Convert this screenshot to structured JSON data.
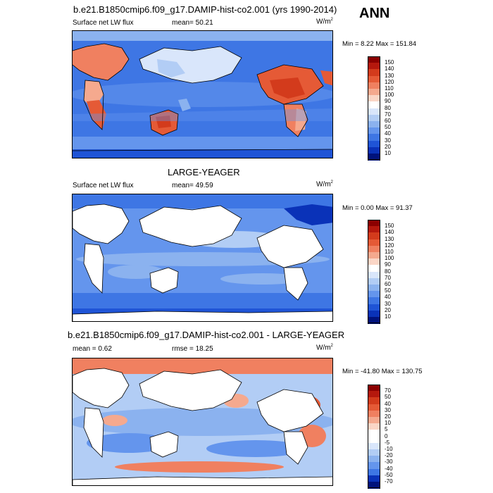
{
  "season": "ANN",
  "chart_data": [
    {
      "type": "heatmap",
      "title": "b.e21.B1850cmip6.f09_g17.DAMIP-hist-co2.001 (yrs 1990-2014)",
      "left_label": "Surface net LW flux",
      "center_label": "mean=  50.21",
      "units": "W/m",
      "units_sup": "2",
      "min_max": "Min =   8.22 Max = 151.84",
      "min": 8.22,
      "max": 151.84,
      "mean": 50.21,
      "colorbar_levels": [
        "150",
        "140",
        "130",
        "120",
        "110",
        "100",
        "90",
        "80",
        "70",
        "60",
        "50",
        "40",
        "30",
        "20",
        "10"
      ],
      "colorbar_colors": [
        "#8b0000",
        "#b5180d",
        "#d33b1c",
        "#e55a36",
        "#f08060",
        "#f5a98e",
        "#fbd6c6",
        "#ffffff",
        "#d9e6fb",
        "#b2cdf5",
        "#8bb2ef",
        "#6495ed",
        "#3e76e4",
        "#1f54d6",
        "#0a32b8",
        "#00127c"
      ]
    },
    {
      "type": "heatmap",
      "title": "LARGE-YEAGER",
      "left_label": "Surface net LW flux",
      "center_label": "mean=  49.59",
      "units": "W/m",
      "units_sup": "2",
      "min_max": "Min =   0.00 Max =  91.37",
      "min": 0.0,
      "max": 91.37,
      "mean": 49.59,
      "colorbar_levels": [
        "150",
        "140",
        "130",
        "120",
        "110",
        "100",
        "90",
        "80",
        "70",
        "60",
        "50",
        "40",
        "30",
        "20",
        "10"
      ],
      "colorbar_colors": [
        "#8b0000",
        "#b5180d",
        "#d33b1c",
        "#e55a36",
        "#f08060",
        "#f5a98e",
        "#fbd6c6",
        "#ffffff",
        "#d9e6fb",
        "#b2cdf5",
        "#8bb2ef",
        "#6495ed",
        "#3e76e4",
        "#1f54d6",
        "#0a32b8",
        "#00127c"
      ]
    },
    {
      "type": "heatmap",
      "title": "b.e21.B1850cmip6.f09_g17.DAMIP-hist-co2.001 - LARGE-YEAGER",
      "left_label": "mean =   0.62",
      "center_label": "rmse =  18.25",
      "units": "W/m",
      "units_sup": "2",
      "min_max": "Min = -41.80 Max = 130.75",
      "min": -41.8,
      "max": 130.75,
      "mean": 0.62,
      "rmse": 18.25,
      "colorbar_levels": [
        "70",
        "50",
        "40",
        "30",
        "20",
        "10",
        "5",
        "0",
        "-5",
        "-10",
        "-20",
        "-30",
        "-40",
        "-50",
        "-70"
      ],
      "colorbar_colors": [
        "#8b0000",
        "#b5180d",
        "#d33b1c",
        "#e55a36",
        "#f08060",
        "#f5a98e",
        "#fbd6c6",
        "#ffffff",
        "#ffffff",
        "#d9e6fb",
        "#b2cdf5",
        "#8bb2ef",
        "#6495ed",
        "#3e76e4",
        "#0a32b8",
        "#00127c"
      ]
    }
  ]
}
